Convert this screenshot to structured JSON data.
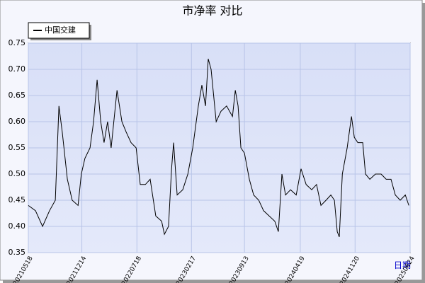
{
  "chart_data": {
    "type": "line",
    "title": "市净率  对比",
    "x_label": "日期",
    "x": [
      "20210518",
      "20210615",
      "20210713",
      "20210809",
      "20210901",
      "20210915",
      "20210928",
      "20211018",
      "20211106",
      "20211129",
      "20211212",
      "20211226",
      "20220115",
      "20220129",
      "20220212",
      "20220226",
      "20220311",
      "20220325",
      "20220408",
      "20220501",
      "20220520",
      "20220606",
      "20220625",
      "20220715",
      "20220731",
      "20220820",
      "20220908",
      "20220930",
      "20221023",
      "20221103",
      "20221119",
      "20221201",
      "20221209",
      "20221223",
      "20230114",
      "20230203",
      "20230222",
      "20230316",
      "20230330",
      "20230413",
      "20230424",
      "20230505",
      "20230525",
      "20230613",
      "20230705",
      "20230728",
      "20230808",
      "20230819",
      "20230830",
      "20230913",
      "20231002",
      "20231019",
      "20231108",
      "20231127",
      "20231219",
      "20240110",
      "20240124",
      "20240207",
      "20240221",
      "20240312",
      "20240403",
      "20240422",
      "20240512",
      "20240603",
      "20240622",
      "20240709",
      "20240729",
      "20240817",
      "20240831",
      "20240911",
      "20240919",
      "20241001",
      "20241020",
      "20241106",
      "20241117",
      "20241201",
      "20241220",
      "20241231",
      "20250117",
      "20250208",
      "20250302",
      "20250322",
      "20250410",
      "20250427",
      "20250516",
      "20250605",
      "20250619"
    ],
    "series": [
      {
        "name": "中国交建",
        "color": "#000000",
        "values": [
          0.44,
          0.43,
          0.4,
          0.43,
          0.45,
          0.63,
          0.58,
          0.49,
          0.45,
          0.44,
          0.5,
          0.53,
          0.55,
          0.6,
          0.68,
          0.6,
          0.56,
          0.6,
          0.55,
          0.66,
          0.6,
          0.58,
          0.56,
          0.55,
          0.48,
          0.48,
          0.49,
          0.42,
          0.41,
          0.385,
          0.4,
          0.51,
          0.56,
          0.46,
          0.47,
          0.5,
          0.55,
          0.63,
          0.67,
          0.63,
          0.72,
          0.7,
          0.6,
          0.62,
          0.63,
          0.61,
          0.66,
          0.63,
          0.55,
          0.54,
          0.49,
          0.46,
          0.45,
          0.43,
          0.42,
          0.41,
          0.39,
          0.5,
          0.46,
          0.47,
          0.46,
          0.51,
          0.48,
          0.47,
          0.48,
          0.44,
          0.45,
          0.46,
          0.45,
          0.39,
          0.38,
          0.5,
          0.55,
          0.61,
          0.57,
          0.56,
          0.56,
          0.5,
          0.49,
          0.5,
          0.5,
          0.49,
          0.49,
          0.46,
          0.45,
          0.46,
          0.44
        ]
      }
    ],
    "xlim": [
      "20210518",
      "20250624"
    ],
    "xticks": [
      "20210518",
      "20211214",
      "20220718",
      "20230217",
      "20230913",
      "20240419",
      "20241120",
      "20250624"
    ],
    "ylim": [
      0.35,
      0.75
    ],
    "yticks": [
      0.35,
      {
        "value": 0.4,
        "label": "0.40"
      },
      0.45,
      {
        "value": 0.5,
        "label": "0.50"
      },
      0.55,
      {
        "value": 0.6,
        "label": "0.60"
      },
      0.65,
      {
        "value": 0.7,
        "label": "0.70"
      },
      0.75
    ],
    "grid": true,
    "legend": "top-left"
  }
}
